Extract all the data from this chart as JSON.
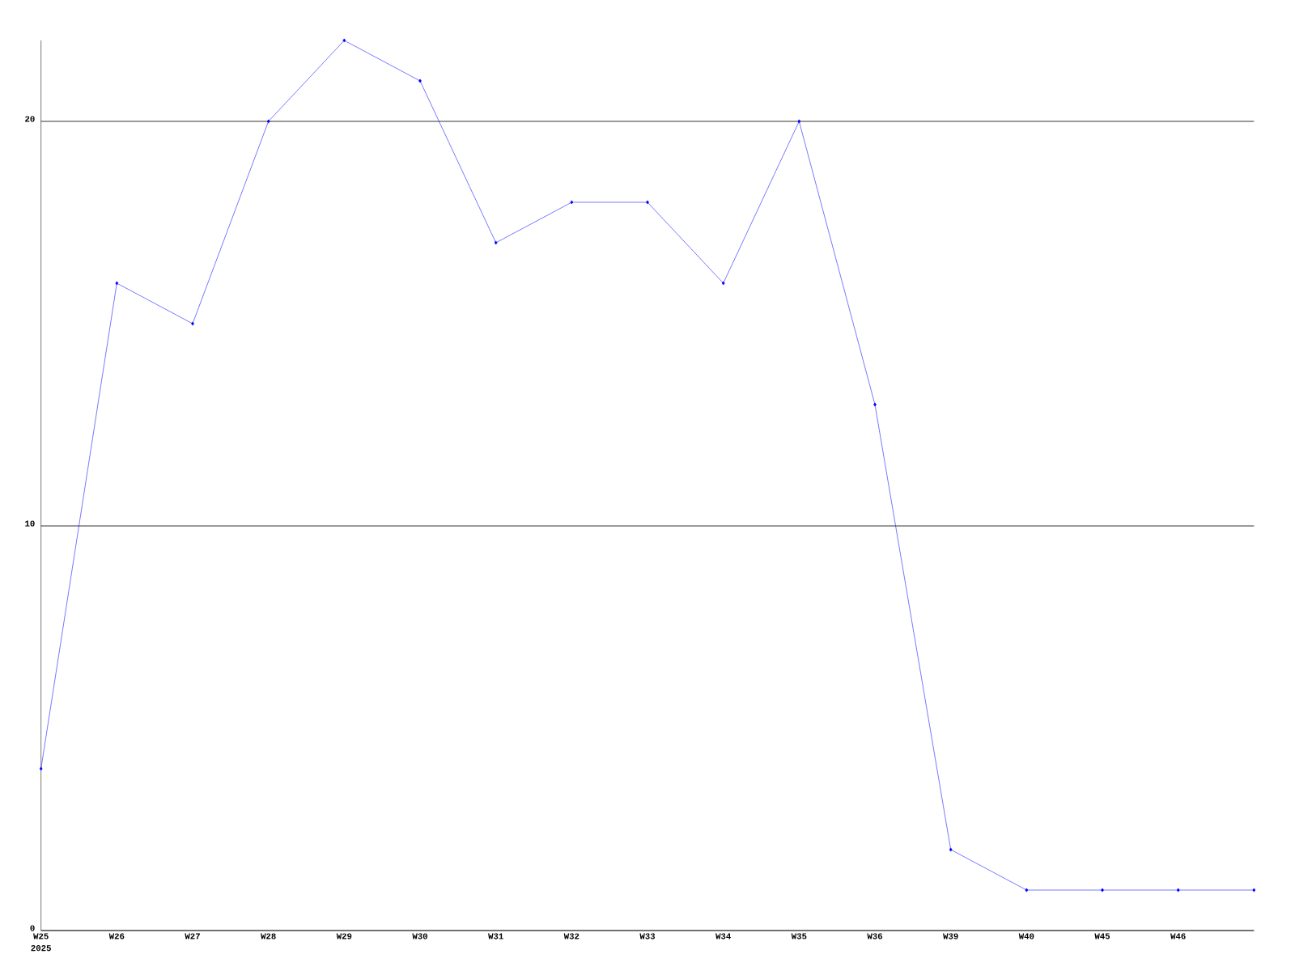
{
  "chart_data": {
    "type": "line",
    "categories": [
      "W25",
      "W26",
      "W27",
      "W28",
      "W29",
      "W30",
      "W31",
      "W32",
      "W33",
      "W34",
      "W35",
      "W36",
      "W39",
      "W40",
      "W45",
      "W46",
      null
    ],
    "values": [
      4,
      16,
      15,
      20,
      22,
      21,
      17,
      18,
      18,
      16,
      20,
      13,
      2,
      1,
      1,
      1,
      1
    ],
    "color": "#0000ff",
    "marker": "diamond",
    "ylim": [
      0,
      22
    ],
    "yticks": [
      0,
      10,
      20
    ],
    "grid": "y",
    "annotations": [
      "2025"
    ]
  }
}
